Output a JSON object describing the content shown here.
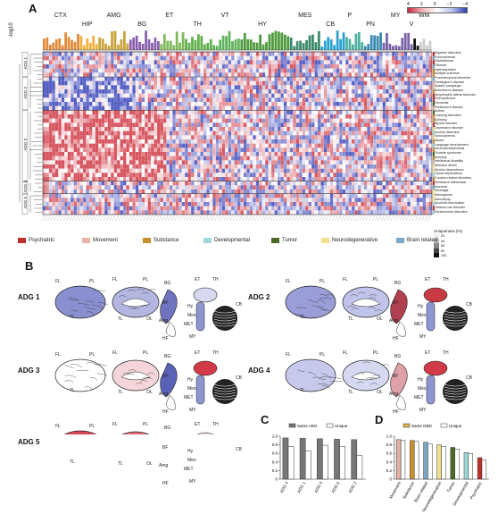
{
  "panels": {
    "a": "A",
    "b": "B",
    "c": "C",
    "d": "D"
  },
  "heatmap": {
    "ylabel": "-log10",
    "color_scale_ticks": [
      "4",
      "2",
      "0",
      "−2",
      "−4"
    ],
    "regions": [
      {
        "name": "CTX",
        "color": "#e08a3a",
        "cols": 12
      },
      {
        "name": "HIP",
        "color": "#f0b040",
        "cols": 6
      },
      {
        "name": "AMG",
        "color": "#c8a23a",
        "cols": 10
      },
      {
        "name": "BG",
        "color": "#8a5fb0",
        "cols": 10
      },
      {
        "name": "ET",
        "color": "#7fb95a",
        "cols": 8
      },
      {
        "name": "TH",
        "color": "#5fb04a",
        "cols": 10
      },
      {
        "name": "VT",
        "color": "#62b35e",
        "cols": 8
      },
      {
        "name": "HY",
        "color": "#4f9a3d",
        "cols": 16
      },
      {
        "name": "MES",
        "color": "#3a8a6a",
        "cols": 10
      },
      {
        "name": "CB",
        "color": "#2aa2d0",
        "cols": 8
      },
      {
        "name": "P",
        "color": "#4ab0a0",
        "cols": 6
      },
      {
        "name": "PN",
        "color": "#3a8ab0",
        "cols": 6
      },
      {
        "name": "MY",
        "color": "#7a62a8",
        "cols": 10
      },
      {
        "name": "V",
        "color": "#111111",
        "cols": 2
      },
      {
        "name": "WM",
        "color": "#cccccc",
        "cols": 4
      }
    ],
    "adg_groups": [
      "ADG 1",
      "ADG 2",
      "ADG 3",
      "ADG 4",
      "ADG 5"
    ],
    "disorders": [
      "Migraine disorders",
      "Schizophrenia",
      "Glioblastoma",
      "Gliomas",
      "Hydrocephalus",
      "Multiple sclerosis",
      "Frontotemporal dementia",
      "Huntington's disease",
      "Spastic paraplegia",
      "Alzheimer's disease",
      "Amyotrophic lateral sclerosis",
      "Rett syndrome",
      "Dementia",
      "Parkinson's disease",
      "Autism",
      "Learning disorders",
      "Epilepsy",
      "Bipolar disorder",
      "Depressive disorder",
      "Anxiety disorders",
      "Schizophrenia",
      "Ataxia",
      "Language development",
      "Neurodevelopmental",
      "Tourette syndrome",
      "Epilepsy",
      "Intellectual disability",
      "Attention deficit",
      "Alcohol dependence",
      "Opioid dependence",
      "Cocaine-related disorders",
      "Substance withdrawal",
      "Amnesia",
      "Neuralgia",
      "Meningioma",
      "Narcolepsy",
      "Alcoholic intoxication",
      "Tobacco use disorder",
      "Parkinsonian disorders"
    ],
    "uniqueness_label": "Uniqueness (%)",
    "uniqueness_ticks": [
      "20",
      "40",
      "60",
      "80",
      "100"
    ]
  },
  "legend": [
    {
      "label": "Psychiatric",
      "color": "#c0302b"
    },
    {
      "label": "Movement",
      "color": "#e6b3a6"
    },
    {
      "label": "Substance",
      "color": "#c98d2a"
    },
    {
      "label": "Developmental",
      "color": "#9fd6d8"
    },
    {
      "label": "Tumor",
      "color": "#4a6a26"
    },
    {
      "label": "Neurodegenerative",
      "color": "#f2e08c"
    },
    {
      "label": "Brain related",
      "color": "#7aa7c8"
    }
  ],
  "brains": {
    "adgs": [
      {
        "title": "ADG 1"
      },
      {
        "title": "ADG 2"
      },
      {
        "title": "ADG 3"
      },
      {
        "title": "ADG 4"
      },
      {
        "title": "ADG 5"
      }
    ],
    "labels": {
      "fl": "FL",
      "pl": "PL",
      "tl": "TL",
      "ol": "OL",
      "bg": "BG",
      "bf": "BF",
      "amg": "Amg",
      "hf": "HF",
      "et": "ET",
      "th": "TH",
      "cb": "CB",
      "hy": "Hy",
      "mes": "Mes",
      "met": "MET",
      "my": "MY"
    }
  },
  "chart_data": [
    {
      "type": "bar",
      "categories": [
        "ADG 4",
        "ADG 1",
        "ADG 3",
        "ADG 5",
        "ADG 2"
      ],
      "series": [
        {
          "name": "Same ADG",
          "values": [
            0.96,
            0.95,
            0.94,
            0.93,
            0.92
          ]
        },
        {
          "name": "Unique",
          "values": [
            0.76,
            0.66,
            0.79,
            0.76,
            0.55
          ]
        }
      ],
      "ylim": [
        0,
        1.0
      ],
      "yticks": [
        "0",
        "0.2",
        "0.4",
        "0.6",
        "0.8",
        "1.0"
      ]
    },
    {
      "type": "bar",
      "categories": [
        "Movement",
        "Substance",
        "Brain related",
        "Neurodegenerative",
        "Tumor",
        "Developmental",
        "Psychiatric"
      ],
      "series": [
        {
          "name": "Same GBD",
          "values": [
            0.92,
            0.9,
            0.86,
            0.8,
            0.74,
            0.62,
            0.5
          ]
        },
        {
          "name": "Unique",
          "values": [
            0.9,
            0.88,
            0.82,
            0.76,
            0.7,
            0.6,
            0.45
          ]
        }
      ],
      "colors": [
        "#e6b3a6",
        "#c98d2a",
        "#7aa7c8",
        "#f2e08c",
        "#4a6a26",
        "#9fd6d8",
        "#c0302b"
      ],
      "ylim": [
        0,
        1.0
      ],
      "yticks": [
        "0",
        "0.2",
        "0.4",
        "0.6",
        "0.8",
        "1.0"
      ]
    }
  ]
}
